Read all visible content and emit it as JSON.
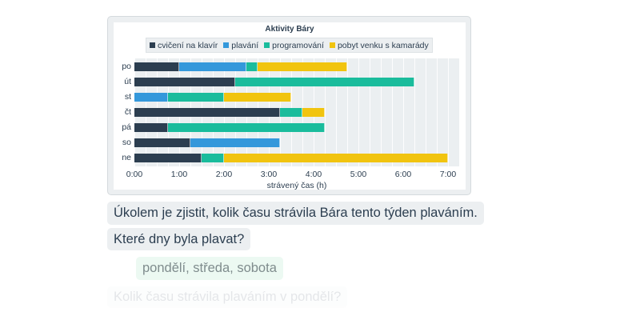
{
  "chart_card": {
    "title": "Aktivity Báry"
  },
  "chart_data": {
    "type": "bar",
    "orientation": "horizontal",
    "stacked": true,
    "title": "Aktivity Báry",
    "xlabel": "strávený čas (h)",
    "ylabel": "",
    "xlim": [
      0,
      7.25
    ],
    "x_ticks": [
      "0:00",
      "1:00",
      "2:00",
      "3:00",
      "4:00",
      "5:00",
      "6:00",
      "7:00"
    ],
    "categories": [
      "po",
      "út",
      "st",
      "čt",
      "pá",
      "so",
      "ne"
    ],
    "legend_position": "top",
    "grid": true,
    "series": [
      {
        "name": "cvičení na klavír",
        "color": "#2c3e50",
        "values": [
          1.0,
          2.25,
          0,
          3.25,
          0.75,
          1.25,
          1.5
        ]
      },
      {
        "name": "plavání",
        "color": "#3498db",
        "values": [
          1.5,
          0,
          0.75,
          0,
          0,
          2.0,
          0
        ]
      },
      {
        "name": "programování",
        "color": "#1abc9c",
        "values": [
          0.25,
          4.0,
          1.25,
          0.5,
          3.5,
          0,
          0.5
        ]
      },
      {
        "name": "pobyt venku s kamarády",
        "color": "#f1c40f",
        "values": [
          2.0,
          0,
          1.5,
          0.5,
          0,
          0,
          5.0
        ]
      }
    ]
  },
  "conversation": {
    "task": "Úkolem je zjistit, kolik času strávila Bára tento týden plaváním.",
    "question": "Které dny byla plavat?",
    "answer": "pondělí, středa, sobota",
    "next_question": "Kolik času strávila plaváním v pondělí?"
  }
}
